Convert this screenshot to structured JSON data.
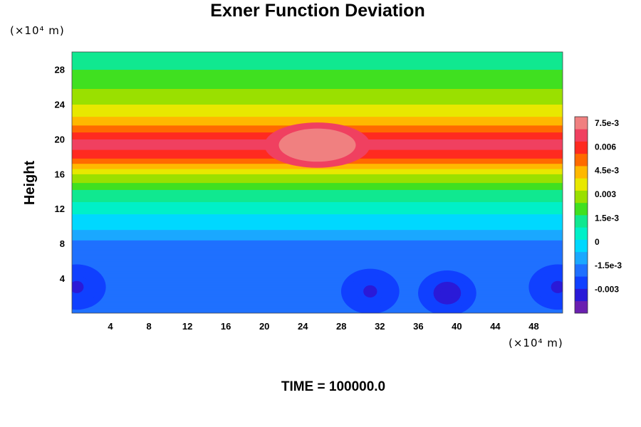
{
  "chart_data": {
    "type": "heatmap",
    "title": "Exner Function Deviation",
    "ylabel": "Height",
    "xlabel": "",
    "x_unit": "(×10⁴ m)",
    "y_unit": "(×10⁴ m)",
    "xlim": [
      0,
      51
    ],
    "ylim": [
      0,
      30
    ],
    "x_ticks": [
      "4",
      "8",
      "12",
      "16",
      "20",
      "24",
      "28",
      "32",
      "36",
      "40",
      "44",
      "48"
    ],
    "y_ticks": [
      "4",
      "8",
      "12",
      "16",
      "20",
      "24",
      "28"
    ],
    "colorbar": {
      "min": -0.0045,
      "max": 0.0079,
      "ticks": [
        "7.5e-3",
        "0.006",
        "4.5e-3",
        "0.003",
        "1.5e-3",
        "0",
        "-1.5e-3",
        "-0.003"
      ],
      "tick_values": [
        0.0075,
        0.006,
        0.0045,
        0.003,
        0.0015,
        0,
        -0.0015,
        -0.003
      ],
      "colors": [
        "#6a1fb0",
        "#2a1ad8",
        "#1040ff",
        "#1f70ff",
        "#1aa8ff",
        "#00d8ff",
        "#00f0c8",
        "#10e890",
        "#40e020",
        "#9ae000",
        "#e8e800",
        "#ffb800",
        "#ff6a00",
        "#ff2a20",
        "#f04060",
        "#f08080"
      ]
    },
    "height_profile": [
      [
        0,
        -0.002
      ],
      [
        4,
        -0.0019
      ],
      [
        8,
        -0.0016
      ],
      [
        10,
        -0.0004
      ],
      [
        12,
        0.0004
      ],
      [
        14,
        0.0016
      ],
      [
        16,
        0.0033
      ],
      [
        18,
        0.0058
      ],
      [
        19.5,
        0.0068
      ],
      [
        21,
        0.0054
      ],
      [
        22,
        0.0044
      ],
      [
        24,
        0.0032
      ],
      [
        26,
        0.0024
      ],
      [
        28,
        0.0017
      ],
      [
        30,
        0.0014
      ]
    ],
    "features": [
      {
        "x": 25.5,
        "y": 19.3,
        "value": 0.0077
      },
      {
        "x": 0.5,
        "y": 3,
        "value": -0.0032
      },
      {
        "x": 31,
        "y": 2.5,
        "value": -0.003
      },
      {
        "x": 39,
        "y": 2.3,
        "value": -0.0033
      },
      {
        "x": 50.5,
        "y": 3,
        "value": -0.0031
      }
    ]
  },
  "footer": {
    "time_label": "TIME = 100000.0"
  }
}
